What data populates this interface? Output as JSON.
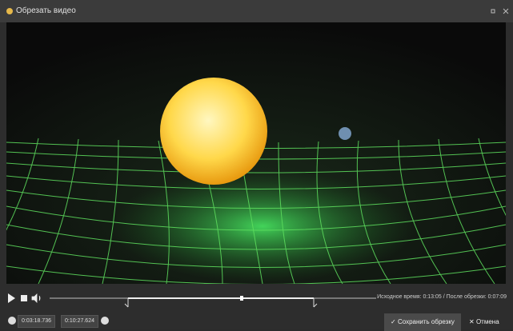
{
  "window": {
    "title": "Обрезать видео"
  },
  "status": {
    "original_label": "Исходное время:",
    "original_time": "0:13:05",
    "separator": "/",
    "trimmed_label": "После обрезки:",
    "trimmed_time": "0:07:09"
  },
  "trim": {
    "start": "0:03:18.736",
    "end": "0:10:27.624"
  },
  "buttons": {
    "save": "Сохранить обрезку",
    "cancel": "Отмена"
  }
}
